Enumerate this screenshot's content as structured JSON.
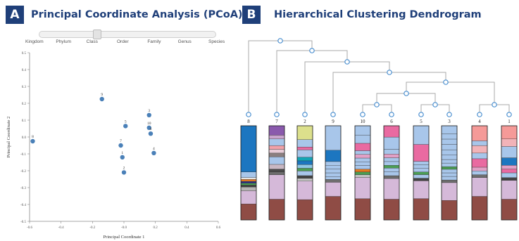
{
  "panel_a": {
    "badge": "A",
    "title": "Principal Coordinate Analysis (PCoA)",
    "rank_slider": {
      "labels": [
        "Kingdom",
        "Phylum",
        "Class",
        "Order",
        "Family",
        "Genus",
        "Species"
      ],
      "selected": "Class"
    },
    "chart_data": {
      "type": "scatter",
      "xlabel": "Principal Coordinate 1",
      "ylabel": "Principal Coordinate 2",
      "xlim": [
        -0.6,
        0.6
      ],
      "ylim": [
        -0.5,
        0.5
      ],
      "xticks": [
        -0.6,
        -0.4,
        -0.2,
        0.0,
        0.2,
        0.4,
        0.6
      ],
      "xtick_labels": [
        "-0.6",
        "-0.4",
        "-0.2",
        "-0.0",
        "0.2",
        "0.4",
        "0.6"
      ],
      "yticks": [
        0.5,
        0.4,
        0.3,
        0.2,
        0.1,
        0.0,
        -0.1,
        -0.2,
        -0.3,
        -0.4,
        -0.5
      ],
      "ytick_labels": [
        "0.5",
        "0.4",
        "0.3",
        "0.2",
        "0.1",
        "0.0",
        "-0.1",
        "-0.2",
        "-0.3",
        "-0.4",
        "-0.5"
      ],
      "point_color": "#4a80b8",
      "points": [
        {
          "label": "8",
          "x": -0.58,
          "y": -0.025
        },
        {
          "label": "9",
          "x": -0.14,
          "y": 0.225
        },
        {
          "label": "7",
          "x": -0.02,
          "y": -0.05
        },
        {
          "label": "5",
          "x": 0.01,
          "y": 0.065
        },
        {
          "label": "1",
          "x": -0.01,
          "y": -0.12
        },
        {
          "label": "2",
          "x": 0.0,
          "y": -0.21
        },
        {
          "label": "3",
          "x": 0.16,
          "y": 0.13
        },
        {
          "label": "10",
          "x": 0.16,
          "y": 0.055
        },
        {
          "label": "6",
          "x": 0.17,
          "y": 0.02
        },
        {
          "label": "4",
          "x": 0.19,
          "y": -0.095
        }
      ]
    }
  },
  "panel_b": {
    "badge": "B",
    "title": "Hierarchical Clustering Dendrogram",
    "tree_color": "#a9a9a9",
    "node_color": "#4a8fd0",
    "leaves": [
      {
        "label": "8",
        "segments": [
          {
            "c": "#8f4c45",
            "h": 17
          },
          {
            "c": "#d5b9d9",
            "h": 14
          },
          {
            "c": "#b6b4b4",
            "h": 4
          },
          {
            "c": "#3f3f3f",
            "h": 2
          },
          {
            "c": "#4b9d53",
            "h": 2
          },
          {
            "c": "#2c2f86",
            "h": 2
          },
          {
            "c": "#e47a1e",
            "h": 2
          },
          {
            "c": "#e4e4e4",
            "h": 2
          },
          {
            "c": "#a8c6ea",
            "h": 6
          },
          {
            "c": "#1c76c0",
            "h": 49
          }
        ]
      },
      {
        "label": "7",
        "segments": [
          {
            "c": "#8f4c45",
            "h": 22
          },
          {
            "c": "#d5b9d9",
            "h": 26
          },
          {
            "c": "#6d6d6d",
            "h": 3
          },
          {
            "c": "#4b4b4b",
            "h": 3
          },
          {
            "c": "#c9b8c3",
            "h": 5
          },
          {
            "c": "#a8c6ea",
            "h": 8
          },
          {
            "c": "#8a7f7f",
            "h": 4
          },
          {
            "c": "#e8cdd8",
            "h": 4
          },
          {
            "c": "#f2a2a9",
            "h": 4
          },
          {
            "c": "#a8c6ea",
            "h": 7
          },
          {
            "c": "#c9a3cd",
            "h": 4
          },
          {
            "c": "#8a59ad",
            "h": 10
          }
        ]
      },
      {
        "label": "2",
        "segments": [
          {
            "c": "#8f4c45",
            "h": 22
          },
          {
            "c": "#d5b9d9",
            "h": 20
          },
          {
            "c": "#c4c4c4",
            "h": 3
          },
          {
            "c": "#444444",
            "h": 3
          },
          {
            "c": "#a8c6ea",
            "h": 5
          },
          {
            "c": "#4b9d53",
            "h": 3
          },
          {
            "c": "#8ec6e5",
            "h": 4
          },
          {
            "c": "#1c76c0",
            "h": 4
          },
          {
            "c": "#12a5b5",
            "h": 4
          },
          {
            "c": "#a8c6ea",
            "h": 8
          },
          {
            "c": "#e96aa1",
            "h": 3
          },
          {
            "c": "#a8c6ea",
            "h": 8
          },
          {
            "c": "#dce08c",
            "h": 15
          }
        ]
      },
      {
        "label": "9",
        "segments": [
          {
            "c": "#8f4c45",
            "h": 25
          },
          {
            "c": "#d5b9d9",
            "h": 15
          },
          {
            "c": "#6d6d6d",
            "h": 3
          },
          {
            "c": "#a8c6ea",
            "h": 3
          },
          {
            "c": "#a8c6ea",
            "h": 4
          },
          {
            "c": "#a8c6ea",
            "h": 4
          },
          {
            "c": "#a8c6ea",
            "h": 4
          },
          {
            "c": "#a8c6ea",
            "h": 4
          },
          {
            "c": "#1c76c0",
            "h": 12
          },
          {
            "c": "#a8c6ea",
            "h": 26
          }
        ]
      },
      {
        "label": "10",
        "segments": [
          {
            "c": "#8f4c45",
            "h": 23
          },
          {
            "c": "#d5b9d9",
            "h": 23
          },
          {
            "c": "#c4c4c4",
            "h": 3
          },
          {
            "c": "#4b9d53",
            "h": 3
          },
          {
            "c": "#e47a1e",
            "h": 3
          },
          {
            "c": "#a8c6ea",
            "h": 4
          },
          {
            "c": "#a8c6ea",
            "h": 4
          },
          {
            "c": "#a8c6ea",
            "h": 4
          },
          {
            "c": "#e1a0c6",
            "h": 4
          },
          {
            "c": "#a8c6ea",
            "h": 4
          },
          {
            "c": "#e96aa1",
            "h": 8
          },
          {
            "c": "#a8c6ea",
            "h": 9
          },
          {
            "c": "#a8c6ea",
            "h": 10
          }
        ]
      },
      {
        "label": "6",
        "segments": [
          {
            "c": "#8f4c45",
            "h": 22
          },
          {
            "c": "#d5b9d9",
            "h": 22
          },
          {
            "c": "#6d6d6d",
            "h": 3
          },
          {
            "c": "#a8c6ea",
            "h": 4
          },
          {
            "c": "#a8c6ea",
            "h": 4
          },
          {
            "c": "#4b9d53",
            "h": 3
          },
          {
            "c": "#a8c6ea",
            "h": 4
          },
          {
            "c": "#a8c6ea",
            "h": 4
          },
          {
            "c": "#e1a0c6",
            "h": 4
          },
          {
            "c": "#a8c6ea",
            "h": 5
          },
          {
            "c": "#a8c6ea",
            "h": 13
          },
          {
            "c": "#e96aa1",
            "h": 12
          }
        ]
      },
      {
        "label": "5",
        "segments": [
          {
            "c": "#8f4c45",
            "h": 24
          },
          {
            "c": "#d5b9d9",
            "h": 20
          },
          {
            "c": "#444444",
            "h": 3
          },
          {
            "c": "#a8c6ea",
            "h": 4
          },
          {
            "c": "#4b9d53",
            "h": 3
          },
          {
            "c": "#a8c6ea",
            "h": 4
          },
          {
            "c": "#a8c6ea",
            "h": 4
          },
          {
            "c": "#a8c6ea",
            "h": 4
          },
          {
            "c": "#e96aa1",
            "h": 19
          },
          {
            "c": "#a8c6ea",
            "h": 21
          }
        ]
      },
      {
        "label": "3",
        "segments": [
          {
            "c": "#8f4c45",
            "h": 22
          },
          {
            "c": "#d5b9d9",
            "h": 20
          },
          {
            "c": "#6d6d6d",
            "h": 3
          },
          {
            "c": "#a8c6ea",
            "h": 4
          },
          {
            "c": "#a8c6ea",
            "h": 4
          },
          {
            "c": "#a8c6ea",
            "h": 4
          },
          {
            "c": "#4b9d53",
            "h": 3
          },
          {
            "c": "#a8c6ea",
            "h": 4
          },
          {
            "c": "#a8c6ea",
            "h": 4
          },
          {
            "c": "#a8c6ea",
            "h": 5
          },
          {
            "c": "#a8c6ea",
            "h": 6
          },
          {
            "c": "#a8c6ea",
            "h": 6
          },
          {
            "c": "#a8c6ea",
            "h": 6
          },
          {
            "c": "#a8c6ea",
            "h": 6
          },
          {
            "c": "#a8c6ea",
            "h": 9
          }
        ]
      },
      {
        "label": "4",
        "segments": [
          {
            "c": "#8f4c45",
            "h": 25
          },
          {
            "c": "#d5b9d9",
            "h": 20
          },
          {
            "c": "#6d6d6d",
            "h": 3
          },
          {
            "c": "#a8c6ea",
            "h": 4
          },
          {
            "c": "#e1a0c6",
            "h": 4
          },
          {
            "c": "#e96aa1",
            "h": 9
          },
          {
            "c": "#a8c6ea",
            "h": 6
          },
          {
            "c": "#f2b3b8",
            "h": 8
          },
          {
            "c": "#a8c6ea",
            "h": 5
          },
          {
            "c": "#f59a98",
            "h": 16
          }
        ]
      },
      {
        "label": "1",
        "segments": [
          {
            "c": "#8f4c45",
            "h": 22
          },
          {
            "c": "#d5b9d9",
            "h": 20
          },
          {
            "c": "#444444",
            "h": 3
          },
          {
            "c": "#a8c6ea",
            "h": 5
          },
          {
            "c": "#e96aa1",
            "h": 4
          },
          {
            "c": "#e1a0c6",
            "h": 4
          },
          {
            "c": "#1c76c0",
            "h": 8
          },
          {
            "c": "#a8c6ea",
            "h": 12
          },
          {
            "c": "#f2b3b8",
            "h": 8
          },
          {
            "c": "#f59a98",
            "h": 14
          }
        ]
      }
    ]
  }
}
